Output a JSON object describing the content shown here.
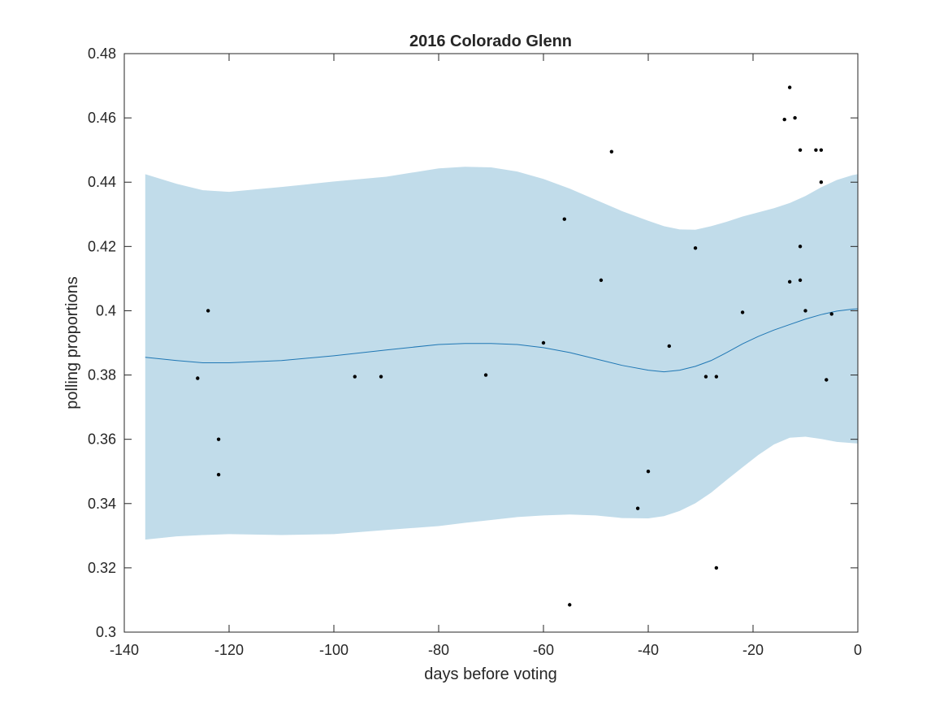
{
  "chart_data": {
    "type": "scatter",
    "title": "2016 Colorado Glenn",
    "xlabel": "days before voting",
    "ylabel": "polling proportions",
    "xlim": [
      -140,
      0
    ],
    "ylim": [
      0.3,
      0.48
    ],
    "xticks": [
      -140,
      -120,
      -100,
      -80,
      -60,
      -40,
      -20,
      0
    ],
    "yticks": [
      0.3,
      0.32,
      0.34,
      0.36,
      0.38,
      0.4,
      0.42,
      0.44,
      0.46,
      0.48
    ],
    "xtick_labels": [
      "-140",
      "-120",
      "-100",
      "-80",
      "-60",
      "-40",
      "-20",
      "0"
    ],
    "ytick_labels": [
      "0.3",
      "0.32",
      "0.34",
      "0.36",
      "0.38",
      "0.4",
      "0.42",
      "0.44",
      "0.46",
      "0.48"
    ],
    "grid": false,
    "colors": {
      "band": "#c1dcea",
      "line": "#1f77b4",
      "points": "#000000",
      "axes": "#262626"
    },
    "series": [
      {
        "type": "scatter",
        "x": [
          -126,
          -124,
          -122,
          -122,
          -96,
          -91,
          -71,
          -60,
          -56,
          -55,
          -49,
          -47,
          -42,
          -40,
          -36,
          -31,
          -29,
          -27,
          -27,
          -22,
          -14,
          -13,
          -13,
          -12,
          -11,
          -11,
          -11,
          -10,
          -8,
          -7,
          -7,
          -6,
          -5
        ],
        "y": [
          0.379,
          0.4,
          0.36,
          0.349,
          0.3795,
          0.3795,
          0.38,
          0.39,
          0.4285,
          0.3085,
          0.4095,
          0.4495,
          0.3385,
          0.35,
          0.389,
          0.4195,
          0.3795,
          0.3795,
          0.32,
          0.3995,
          0.4595,
          0.4695,
          0.409,
          0.46,
          0.45,
          0.42,
          0.4095,
          0.4,
          0.45,
          0.45,
          0.44,
          0.3785,
          0.399
        ]
      },
      {
        "type": "line",
        "x": [
          -136,
          -130,
          -125,
          -120,
          -110,
          -100,
          -90,
          -80,
          -75,
          -70,
          -65,
          -60,
          -55,
          -50,
          -45,
          -40,
          -37,
          -34,
          -31,
          -28,
          -25,
          -22,
          -19,
          -16,
          -13,
          -10,
          -7,
          -4,
          -1,
          0
        ],
        "y": [
          0.3855,
          0.3845,
          0.3838,
          0.3838,
          0.3845,
          0.386,
          0.3878,
          0.3895,
          0.3898,
          0.3898,
          0.3895,
          0.3885,
          0.387,
          0.385,
          0.383,
          0.3815,
          0.381,
          0.3815,
          0.3827,
          0.3845,
          0.387,
          0.3897,
          0.392,
          0.394,
          0.3957,
          0.3974,
          0.3988,
          0.3999,
          0.4005,
          0.4006
        ]
      },
      {
        "type": "area",
        "x": [
          -136,
          -130,
          -125,
          -120,
          -110,
          -100,
          -90,
          -80,
          -75,
          -70,
          -65,
          -60,
          -55,
          -50,
          -45,
          -40,
          -37,
          -34,
          -31,
          -28,
          -25,
          -22,
          -19,
          -16,
          -13,
          -10,
          -7,
          -4,
          -1,
          0
        ],
        "upper": [
          0.4425,
          0.4395,
          0.4375,
          0.437,
          0.4385,
          0.4402,
          0.4417,
          0.4443,
          0.4448,
          0.4446,
          0.4433,
          0.441,
          0.438,
          0.4345,
          0.431,
          0.428,
          0.4263,
          0.4253,
          0.4252,
          0.4263,
          0.4277,
          0.4293,
          0.4306,
          0.4319,
          0.4335,
          0.4357,
          0.4384,
          0.4407,
          0.4422,
          0.4425
        ],
        "lower": [
          0.3288,
          0.3298,
          0.3302,
          0.3305,
          0.3302,
          0.3305,
          0.3318,
          0.333,
          0.334,
          0.3349,
          0.3358,
          0.3363,
          0.3366,
          0.3363,
          0.3355,
          0.3354,
          0.3361,
          0.3377,
          0.3401,
          0.3434,
          0.3474,
          0.3513,
          0.3551,
          0.3584,
          0.3605,
          0.3608,
          0.3601,
          0.3592,
          0.3588,
          0.3587
        ]
      }
    ]
  }
}
